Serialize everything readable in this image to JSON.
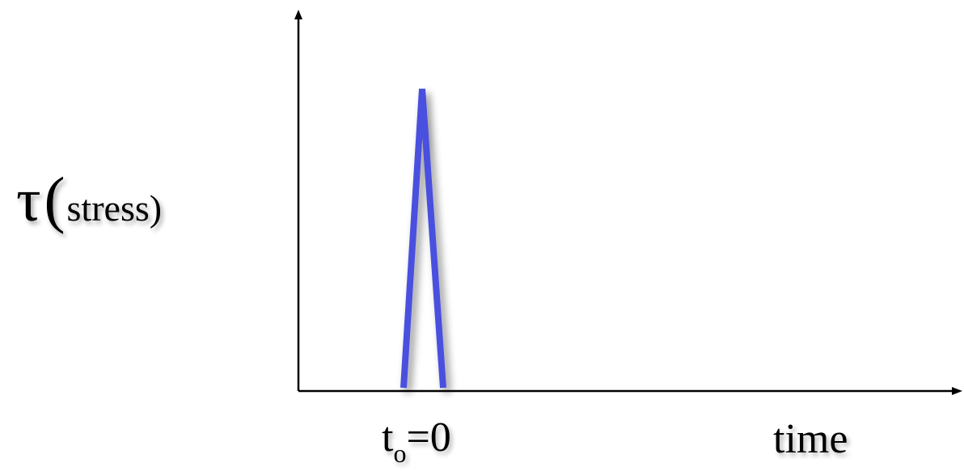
{
  "diagram": {
    "y_axis": {
      "symbol": "τ",
      "open_paren": "(",
      "label": "stress)",
      "close_paren": ""
    },
    "x_axis": {
      "label": "time"
    },
    "tick": {
      "main": "t",
      "subscript": "o",
      "value": "=0"
    },
    "pulse_color": "#4a4fde",
    "axis_color": "#000000",
    "chart_data": {
      "type": "line",
      "series": [
        {
          "name": "",
          "x": [
            -1,
            0,
            1
          ],
          "y": [
            0,
            1,
            0
          ]
        }
      ],
      "xlabel": "time",
      "ylabel": "τ (stress)",
      "grid": false
    }
  }
}
